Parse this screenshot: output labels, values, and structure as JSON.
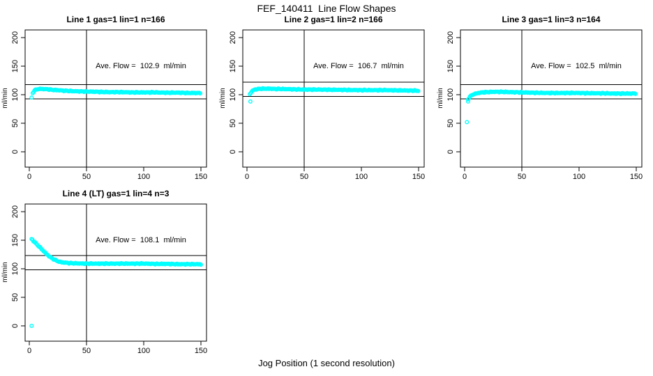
{
  "figure_title": "FEF_140411  Line Flow Shapes",
  "x_axis_title": "Jog Position (1 second resolution)",
  "y_axis_title": "ml/min",
  "point_color": "#00FFFF",
  "axis_color": "#000000",
  "axes": {
    "xlim": [
      0,
      155
    ],
    "ylim": [
      0,
      200
    ],
    "x_ticks": [
      0,
      50,
      100,
      150
    ],
    "y_ticks": [
      0,
      50,
      100,
      150,
      200
    ],
    "vline_x": 50,
    "grid": false
  },
  "chart_data": [
    {
      "type": "scatter",
      "title": "Line 1 gas=1 lin=1 n=166",
      "annotation": "Ave. Flow =  102.9  ml/min",
      "ave_flow": 102.9,
      "n": 166,
      "limit_high": 117.9,
      "limit_low": 92.9,
      "outlier_points": [
        [
          2,
          95
        ]
      ],
      "curve_keypoints": [
        [
          3,
          103
        ],
        [
          4,
          106
        ],
        [
          5,
          108
        ],
        [
          6,
          109
        ],
        [
          8,
          110
        ],
        [
          12,
          110
        ],
        [
          16,
          109.5
        ],
        [
          20,
          108.5
        ],
        [
          25,
          108
        ],
        [
          30,
          107
        ],
        [
          40,
          106
        ],
        [
          50,
          105.5
        ],
        [
          60,
          105
        ],
        [
          70,
          104.5
        ],
        [
          80,
          104.5
        ],
        [
          90,
          104
        ],
        [
          100,
          104
        ],
        [
          110,
          104
        ],
        [
          120,
          103.5
        ],
        [
          130,
          103.5
        ],
        [
          140,
          103
        ],
        [
          150,
          103
        ]
      ],
      "x_step": 0.8
    },
    {
      "type": "scatter",
      "title": "Line 2 gas=1 lin=2 n=166",
      "annotation": "Ave. Flow =  106.7  ml/min",
      "ave_flow": 106.7,
      "n": 166,
      "limit_high": 121.7,
      "limit_low": 96.7,
      "outlier_points": [
        [
          3,
          88
        ]
      ],
      "curve_keypoints": [
        [
          2.5,
          101
        ],
        [
          4,
          105
        ],
        [
          5,
          107
        ],
        [
          6,
          108.5
        ],
        [
          8,
          109.5
        ],
        [
          12,
          110.5
        ],
        [
          16,
          110.5
        ],
        [
          20,
          110.5
        ],
        [
          25,
          110
        ],
        [
          30,
          110
        ],
        [
          40,
          109.5
        ],
        [
          50,
          109
        ],
        [
          60,
          109
        ],
        [
          80,
          108.5
        ],
        [
          100,
          108
        ],
        [
          120,
          108
        ],
        [
          135,
          107.5
        ],
        [
          150,
          107
        ]
      ],
      "x_step": 0.8
    },
    {
      "type": "scatter",
      "title": "Line 3 gas=1 lin=3 n=164",
      "annotation": "Ave. Flow =  102.5  ml/min",
      "ave_flow": 102.5,
      "n": 164,
      "limit_high": 117.5,
      "limit_low": 92.5,
      "outlier_points": [
        [
          2,
          52
        ],
        [
          3,
          88
        ]
      ],
      "curve_keypoints": [
        [
          3,
          92
        ],
        [
          4,
          95
        ],
        [
          5,
          97
        ],
        [
          6,
          99
        ],
        [
          8,
          101
        ],
        [
          10,
          102
        ],
        [
          12,
          103
        ],
        [
          15,
          104
        ],
        [
          20,
          104.5
        ],
        [
          25,
          105
        ],
        [
          30,
          105
        ],
        [
          40,
          104.5
        ],
        [
          50,
          104
        ],
        [
          60,
          103.5
        ],
        [
          70,
          103
        ],
        [
          80,
          103
        ],
        [
          90,
          103
        ],
        [
          100,
          103
        ],
        [
          110,
          102.5
        ],
        [
          120,
          102.5
        ],
        [
          130,
          102
        ],
        [
          140,
          102
        ],
        [
          150,
          102
        ]
      ],
      "x_step": 0.8
    },
    {
      "type": "scatter",
      "title": "Line 4 (LT) gas=1 lin=4 n=3",
      "annotation": "Ave. Flow =  108.1  ml/min",
      "ave_flow": 108.1,
      "n": 3,
      "limit_high": 123.1,
      "limit_low": 98.1,
      "outlier_points": [
        [
          2,
          0
        ]
      ],
      "curve_keypoints": [
        [
          2,
          152
        ],
        [
          3,
          150
        ],
        [
          4,
          148
        ],
        [
          5,
          146
        ],
        [
          6,
          144
        ],
        [
          8,
          140
        ],
        [
          10,
          136
        ],
        [
          12,
          132
        ],
        [
          14,
          128
        ],
        [
          16,
          124
        ],
        [
          18,
          121
        ],
        [
          20,
          118
        ],
        [
          22,
          116
        ],
        [
          24,
          114
        ],
        [
          26,
          112.5
        ],
        [
          28,
          111.5
        ],
        [
          30,
          111
        ],
        [
          35,
          110
        ],
        [
          40,
          109.5
        ],
        [
          50,
          109
        ],
        [
          60,
          109
        ],
        [
          70,
          109
        ],
        [
          80,
          109
        ],
        [
          90,
          109
        ],
        [
          100,
          109
        ],
        [
          110,
          108.5
        ],
        [
          120,
          108.5
        ],
        [
          130,
          108
        ],
        [
          140,
          108
        ],
        [
          150,
          108
        ]
      ],
      "x_step": 0.8
    }
  ]
}
